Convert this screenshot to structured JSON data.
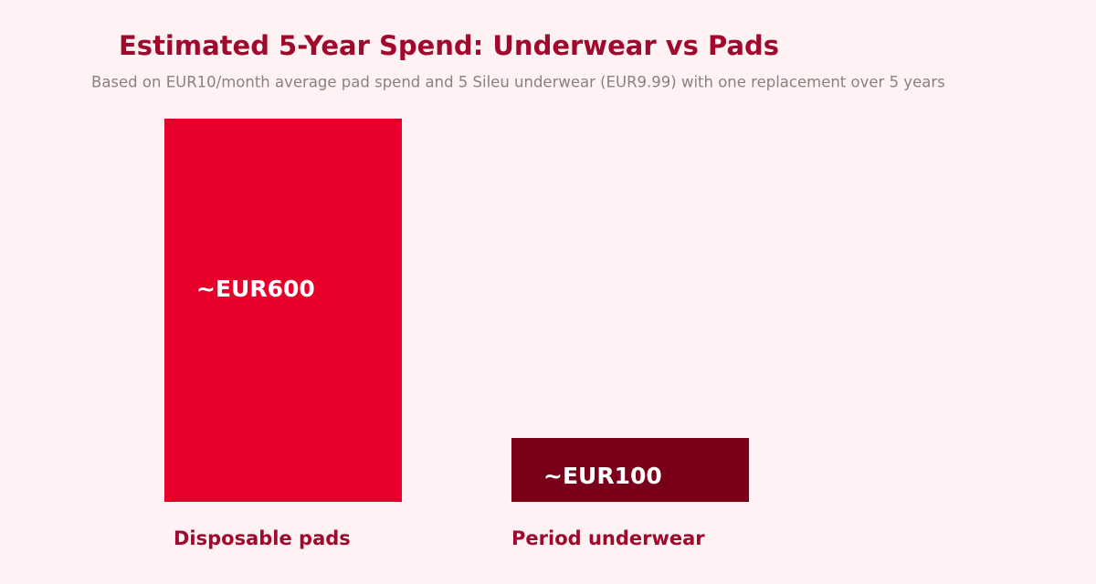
{
  "chart_data": {
    "type": "bar",
    "title": "Estimated 5-Year Spend: Underwear vs Pads",
    "subtitle": "Based on EUR10/month average pad spend and 5 Sileu underwear (EUR9.99) with one replacement over 5 years",
    "categories": [
      "Disposable pads",
      "Period underwear"
    ],
    "values": [
      600,
      100
    ],
    "value_labels": [
      "~EUR600",
      "~EUR100"
    ],
    "colors": [
      "#e8002a",
      "#7a0019"
    ],
    "ylim": [
      0,
      600
    ]
  }
}
